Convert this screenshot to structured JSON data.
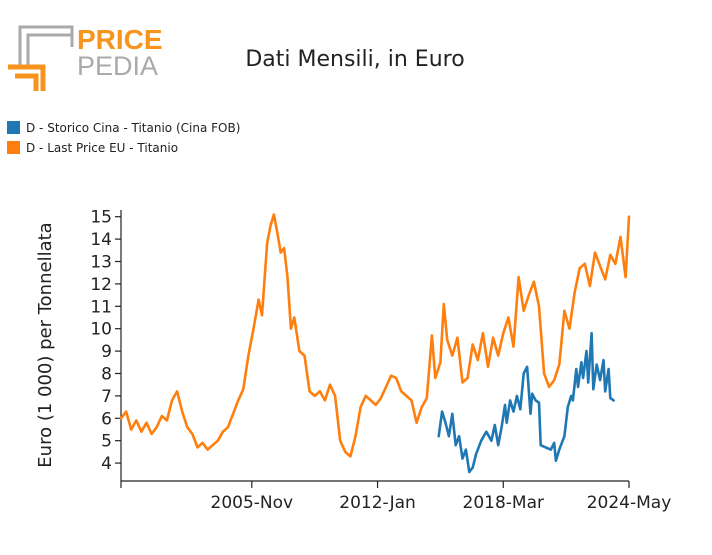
{
  "header": {
    "logo_word_top": "PRICE",
    "logo_word_bottom": "PEDIA",
    "title": "Dati Mensili, in Euro"
  },
  "legend": [
    {
      "label": "D - Storico Cina - Titanio (Cina FOB)",
      "color": "#1f77b4"
    },
    {
      "label": "D - Last Price EU - Titanio",
      "color": "#ff7f0e"
    }
  ],
  "colors": {
    "logo_orange": "#f7941d",
    "logo_gray": "#aaaaaa",
    "axis": "#222222"
  },
  "chart_data": {
    "type": "line",
    "title": "Dati Mensili, in Euro",
    "xlabel": "",
    "ylabel": "Euro (1 000) per Tonnellata",
    "xlim": [
      "1999-06",
      "2024-05"
    ],
    "ylim": [
      3.2,
      15.3
    ],
    "yticks": [
      4,
      5,
      6,
      7,
      8,
      9,
      10,
      11,
      12,
      13,
      14,
      15
    ],
    "xticks": [
      "2005-Nov",
      "2012-Jan",
      "2018-Mar",
      "2024-May"
    ],
    "legend_position": "top-left",
    "grid": false,
    "series": [
      {
        "name": "D - Storico Cina - Titanio (Cina FOB)",
        "color": "#1f77b4",
        "points": [
          [
            "2015-01",
            5.2
          ],
          [
            "2015-03",
            6.3
          ],
          [
            "2015-05",
            5.8
          ],
          [
            "2015-07",
            5.2
          ],
          [
            "2015-09",
            6.2
          ],
          [
            "2015-11",
            4.8
          ],
          [
            "2016-01",
            5.2
          ],
          [
            "2016-03",
            4.2
          ],
          [
            "2016-05",
            4.6
          ],
          [
            "2016-07",
            3.6
          ],
          [
            "2016-09",
            3.8
          ],
          [
            "2016-11",
            4.4
          ],
          [
            "2017-02",
            5.0
          ],
          [
            "2017-05",
            5.4
          ],
          [
            "2017-08",
            5.0
          ],
          [
            "2017-10",
            5.7
          ],
          [
            "2017-12",
            4.8
          ],
          [
            "2018-02",
            5.6
          ],
          [
            "2018-04",
            6.6
          ],
          [
            "2018-05",
            5.8
          ],
          [
            "2018-07",
            6.8
          ],
          [
            "2018-09",
            6.3
          ],
          [
            "2018-11",
            7.0
          ],
          [
            "2019-01",
            6.4
          ],
          [
            "2019-03",
            8.0
          ],
          [
            "2019-05",
            8.3
          ],
          [
            "2019-07",
            6.2
          ],
          [
            "2019-08",
            7.1
          ],
          [
            "2019-10",
            6.8
          ],
          [
            "2019-12",
            6.7
          ],
          [
            "2020-01",
            4.8
          ],
          [
            "2020-04",
            4.7
          ],
          [
            "2020-07",
            4.6
          ],
          [
            "2020-09",
            4.9
          ],
          [
            "2020-10",
            4.1
          ],
          [
            "2020-12",
            4.6
          ],
          [
            "2021-03",
            5.2
          ],
          [
            "2021-05",
            6.5
          ],
          [
            "2021-07",
            7.0
          ],
          [
            "2021-08",
            6.8
          ],
          [
            "2021-10",
            8.2
          ],
          [
            "2021-11",
            7.4
          ],
          [
            "2022-01",
            8.5
          ],
          [
            "2022-02",
            7.8
          ],
          [
            "2022-04",
            9.0
          ],
          [
            "2022-05",
            7.6
          ],
          [
            "2022-07",
            9.8
          ],
          [
            "2022-08",
            7.3
          ],
          [
            "2022-10",
            8.4
          ],
          [
            "2022-12",
            7.7
          ],
          [
            "2023-02",
            8.6
          ],
          [
            "2023-03",
            7.2
          ],
          [
            "2023-05",
            8.2
          ],
          [
            "2023-06",
            6.9
          ],
          [
            "2023-08",
            6.8
          ]
        ]
      },
      {
        "name": "D - Last Price EU - Titanio",
        "color": "#ff7f0e",
        "points": [
          [
            "1999-06",
            6.0
          ],
          [
            "1999-09",
            6.3
          ],
          [
            "1999-12",
            5.5
          ],
          [
            "2000-03",
            5.9
          ],
          [
            "2000-06",
            5.4
          ],
          [
            "2000-09",
            5.8
          ],
          [
            "2000-12",
            5.3
          ],
          [
            "2001-03",
            5.6
          ],
          [
            "2001-06",
            6.1
          ],
          [
            "2001-09",
            5.9
          ],
          [
            "2001-12",
            6.8
          ],
          [
            "2002-03",
            7.2
          ],
          [
            "2002-06",
            6.3
          ],
          [
            "2002-09",
            5.6
          ],
          [
            "2002-12",
            5.3
          ],
          [
            "2003-03",
            4.7
          ],
          [
            "2003-06",
            4.9
          ],
          [
            "2003-09",
            4.6
          ],
          [
            "2003-12",
            4.8
          ],
          [
            "2004-03",
            5.0
          ],
          [
            "2004-06",
            5.4
          ],
          [
            "2004-09",
            5.6
          ],
          [
            "2004-12",
            6.2
          ],
          [
            "2005-03",
            6.8
          ],
          [
            "2005-06",
            7.3
          ],
          [
            "2005-09",
            8.8
          ],
          [
            "2005-12",
            10.0
          ],
          [
            "2006-03",
            11.3
          ],
          [
            "2006-05",
            10.6
          ],
          [
            "2006-08",
            13.8
          ],
          [
            "2006-10",
            14.6
          ],
          [
            "2006-12",
            15.1
          ],
          [
            "2007-02",
            14.3
          ],
          [
            "2007-04",
            13.4
          ],
          [
            "2007-06",
            13.6
          ],
          [
            "2007-08",
            12.3
          ],
          [
            "2007-10",
            10.0
          ],
          [
            "2007-12",
            10.5
          ],
          [
            "2008-03",
            9.0
          ],
          [
            "2008-06",
            8.8
          ],
          [
            "2008-09",
            7.2
          ],
          [
            "2008-12",
            7.0
          ],
          [
            "2009-03",
            7.2
          ],
          [
            "2009-06",
            6.8
          ],
          [
            "2009-09",
            7.5
          ],
          [
            "2009-12",
            7.0
          ],
          [
            "2010-03",
            5.0
          ],
          [
            "2010-06",
            4.5
          ],
          [
            "2010-09",
            4.3
          ],
          [
            "2010-12",
            5.2
          ],
          [
            "2011-03",
            6.5
          ],
          [
            "2011-06",
            7.0
          ],
          [
            "2011-09",
            6.8
          ],
          [
            "2011-12",
            6.6
          ],
          [
            "2012-03",
            6.9
          ],
          [
            "2012-06",
            7.4
          ],
          [
            "2012-09",
            7.9
          ],
          [
            "2012-12",
            7.8
          ],
          [
            "2013-03",
            7.2
          ],
          [
            "2013-06",
            7.0
          ],
          [
            "2013-09",
            6.8
          ],
          [
            "2013-12",
            5.8
          ],
          [
            "2014-03",
            6.5
          ],
          [
            "2014-06",
            6.9
          ],
          [
            "2014-09",
            9.7
          ],
          [
            "2014-11",
            7.8
          ],
          [
            "2015-02",
            8.5
          ],
          [
            "2015-04",
            11.1
          ],
          [
            "2015-06",
            9.5
          ],
          [
            "2015-09",
            8.8
          ],
          [
            "2015-12",
            9.6
          ],
          [
            "2016-03",
            7.6
          ],
          [
            "2016-06",
            7.8
          ],
          [
            "2016-09",
            9.3
          ],
          [
            "2016-12",
            8.6
          ],
          [
            "2017-03",
            9.8
          ],
          [
            "2017-06",
            8.3
          ],
          [
            "2017-09",
            9.6
          ],
          [
            "2017-12",
            8.8
          ],
          [
            "2018-03",
            9.8
          ],
          [
            "2018-06",
            10.5
          ],
          [
            "2018-09",
            9.2
          ],
          [
            "2018-12",
            12.3
          ],
          [
            "2019-03",
            10.8
          ],
          [
            "2019-06",
            11.5
          ],
          [
            "2019-09",
            12.1
          ],
          [
            "2019-12",
            11.0
          ],
          [
            "2020-03",
            8.0
          ],
          [
            "2020-06",
            7.4
          ],
          [
            "2020-09",
            7.7
          ],
          [
            "2020-12",
            8.4
          ],
          [
            "2021-03",
            10.8
          ],
          [
            "2021-06",
            10.0
          ],
          [
            "2021-09",
            11.6
          ],
          [
            "2021-12",
            12.7
          ],
          [
            "2022-03",
            12.9
          ],
          [
            "2022-06",
            11.9
          ],
          [
            "2022-09",
            13.4
          ],
          [
            "2022-12",
            12.8
          ],
          [
            "2023-03",
            12.2
          ],
          [
            "2023-06",
            13.3
          ],
          [
            "2023-09",
            12.9
          ],
          [
            "2023-12",
            14.1
          ],
          [
            "2024-03",
            12.3
          ],
          [
            "2024-05",
            15.0
          ]
        ]
      }
    ]
  }
}
